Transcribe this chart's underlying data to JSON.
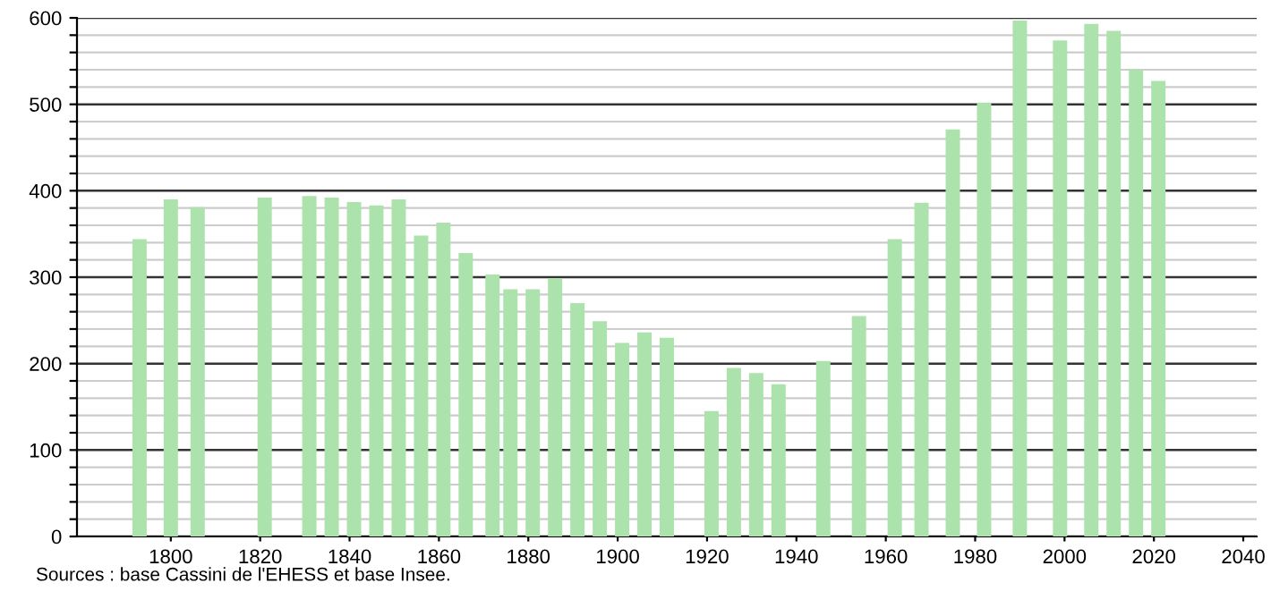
{
  "chart_data": {
    "type": "bar",
    "x": [
      1793,
      1800,
      1806,
      1821,
      1831,
      1836,
      1841,
      1846,
      1851,
      1856,
      1861,
      1866,
      1872,
      1876,
      1881,
      1886,
      1891,
      1896,
      1901,
      1906,
      1911,
      1921,
      1926,
      1931,
      1936,
      1946,
      1954,
      1962,
      1968,
      1975,
      1982,
      1990,
      1999,
      2006,
      2011,
      2016,
      2021
    ],
    "series": [
      {
        "color": "#ace3ac",
        "values": [
          344,
          390,
          381,
          392,
          394,
          392,
          387,
          383,
          390,
          348,
          363,
          328,
          303,
          286,
          286,
          299,
          270,
          249,
          224,
          236,
          230,
          145,
          195,
          189,
          176,
          203,
          255,
          344,
          386,
          471,
          502,
          597,
          574,
          593,
          585,
          540,
          527
        ]
      }
    ],
    "xlim": [
      1779,
      2043
    ],
    "xticks": [
      1800,
      1820,
      1840,
      1860,
      1880,
      1900,
      1920,
      1940,
      1960,
      1980,
      2000,
      2020,
      2040
    ],
    "ylim": [
      0,
      600
    ],
    "yticks": [
      0,
      {
        "value": 20,
        "label": null
      },
      {
        "value": 40,
        "label": null
      },
      {
        "value": 60,
        "label": null
      },
      {
        "value": 80,
        "label": null
      },
      100,
      {
        "value": 120,
        "label": null
      },
      {
        "value": 140,
        "label": null
      },
      {
        "value": 160,
        "label": null
      },
      {
        "value": 180,
        "label": null
      },
      200,
      {
        "value": 220,
        "label": null
      },
      {
        "value": 240,
        "label": null
      },
      {
        "value": 260,
        "label": null
      },
      {
        "value": 280,
        "label": null
      },
      300,
      {
        "value": 320,
        "label": null
      },
      {
        "value": 340,
        "label": null
      },
      {
        "value": 360,
        "label": null
      },
      {
        "value": 380,
        "label": null
      },
      400,
      {
        "value": 420,
        "label": null
      },
      {
        "value": 440,
        "label": null
      },
      {
        "value": 460,
        "label": null
      },
      {
        "value": 480,
        "label": null
      },
      500,
      {
        "value": 520,
        "label": null
      },
      {
        "value": 540,
        "label": null
      },
      {
        "value": 560,
        "label": null
      },
      {
        "value": 580,
        "label": null
      },
      600
    ],
    "grid": "y",
    "annotations": [
      "Sources : base Cassini de l'EHESS et base Insee."
    ]
  }
}
